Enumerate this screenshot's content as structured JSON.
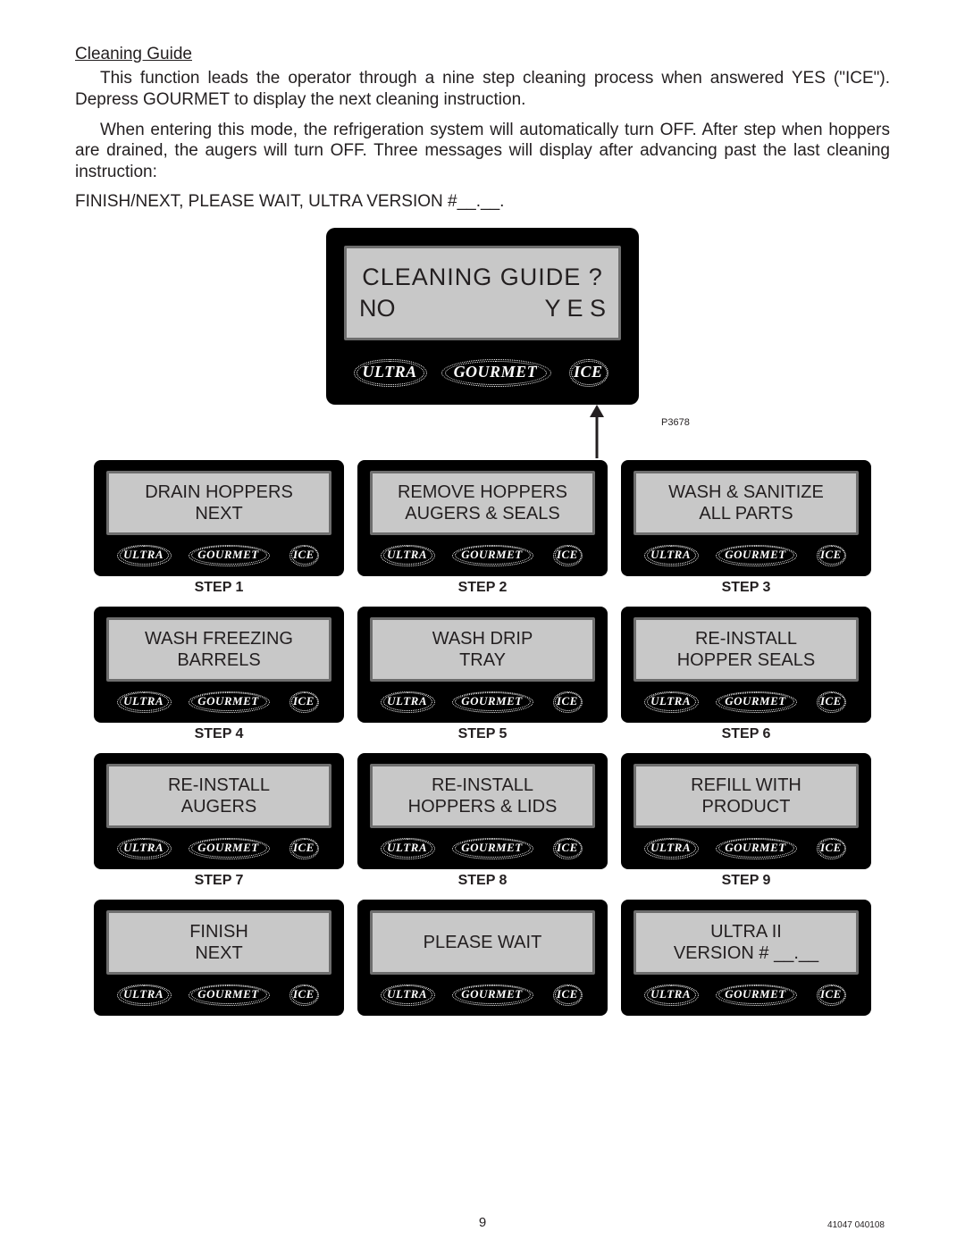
{
  "header": {
    "title": "Cleaning Guide",
    "para1": "This function leads the operator through a nine step cleaning process when answered YES (\"ICE\"). Depress GOURMET to display the next cleaning instruction.",
    "para2": "When entering this mode, the refrigeration system will automatically turn OFF. After step when hoppers are drained, the augers will turn OFF. Three messages will display after advancing past the last cleaning instruction:",
    "finish_line": "FINISH/NEXT, PLEASE WAIT, ULTRA VERSION #__.__."
  },
  "main_panel": {
    "question": "CLEANING GUIDE ?",
    "no_label": "NO",
    "yes_label": "Y E S",
    "fig_ref": "P3678"
  },
  "brand_buttons": {
    "ultra": "ULTRA",
    "gourmet": "GOURMET",
    "ice": "ICE"
  },
  "colors": {
    "panel_bg": "#000000",
    "screen_bg": "#c8c8c8",
    "screen_border": "#6e6e6e",
    "text": "#231f20",
    "brand_text": "#ffffff"
  },
  "steps": [
    {
      "line1": "DRAIN HOPPERS",
      "line2": "NEXT",
      "label": "STEP 1"
    },
    {
      "line1": "REMOVE HOPPERS",
      "line2": "AUGERS & SEALS",
      "label": "STEP 2"
    },
    {
      "line1": "WASH & SANITIZE",
      "line2": "ALL PARTS",
      "label": "STEP 3"
    },
    {
      "line1": "WASH FREEZING",
      "line2": "BARRELS",
      "label": "STEP 4"
    },
    {
      "line1": "WASH DRIP",
      "line2": "TRAY",
      "label": "STEP 5"
    },
    {
      "line1": "RE-INSTALL",
      "line2": "HOPPER SEALS",
      "label": "STEP 6"
    },
    {
      "line1": "RE-INSTALL",
      "line2": "AUGERS",
      "label": "STEP 7"
    },
    {
      "line1": "RE-INSTALL",
      "line2": "HOPPERS & LIDS",
      "label": "STEP 8"
    },
    {
      "line1": "REFILL WITH",
      "line2": "PRODUCT",
      "label": "STEP 9"
    },
    {
      "line1": "FINISH",
      "line2": "NEXT",
      "label": ""
    },
    {
      "line1": "PLEASE WAIT",
      "line2": "",
      "label": ""
    },
    {
      "line1": "ULTRA II",
      "line2": "VERSION #  __.__",
      "label": ""
    }
  ],
  "footer": {
    "page_number": "9",
    "doc_code": "41047  040108"
  }
}
